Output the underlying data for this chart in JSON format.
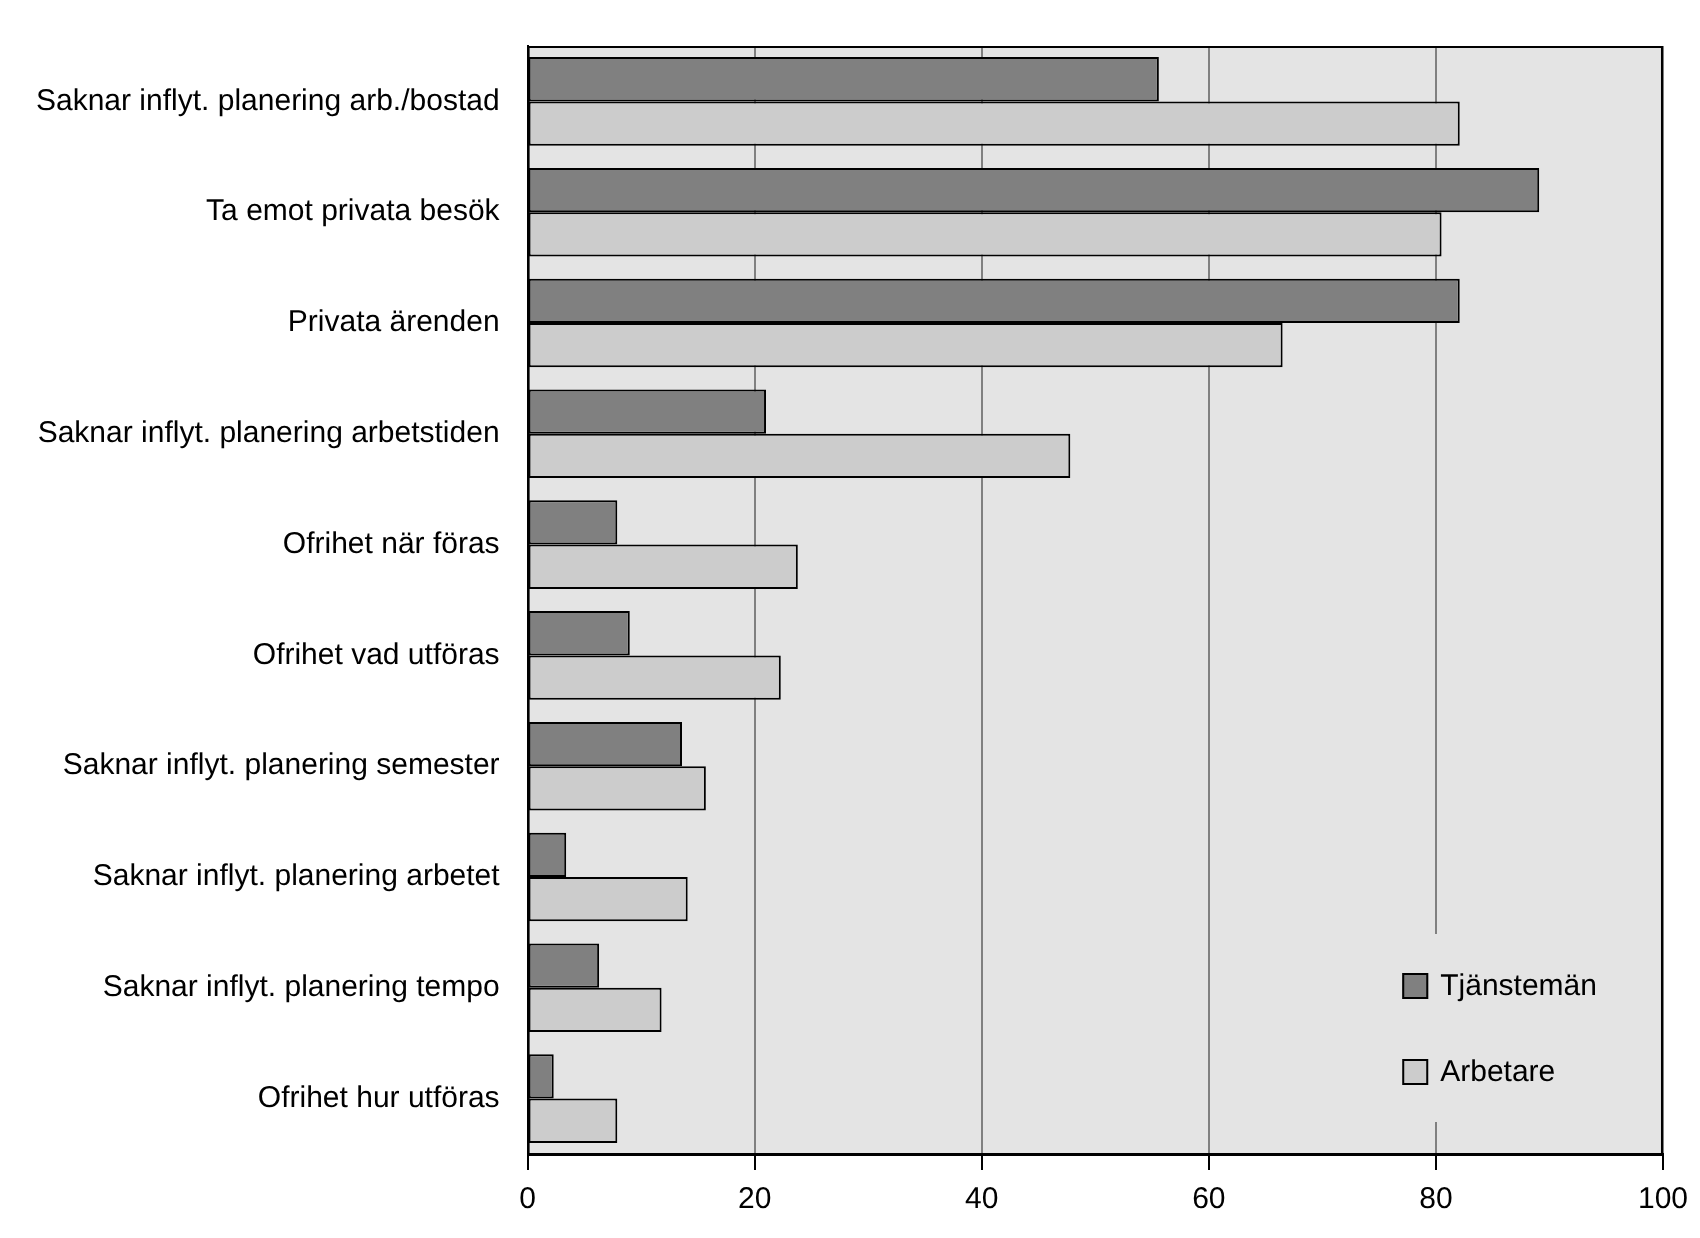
{
  "chart_data": {
    "type": "bar",
    "orientation": "horizontal",
    "categories": [
      "Saknar inflyt. planering arb./bostad",
      "Ta emot privata besök",
      "Privata ärenden",
      "Saknar inflyt. planering arbetstiden",
      "Ofrihet när föras",
      "Ofrihet vad utföras",
      "Saknar inflyt. planering semester",
      "Saknar inflyt. planering arbetet",
      "Saknar inflyt. planering tempo",
      "Ofrihet hur utföras"
    ],
    "series": [
      {
        "name": "Tjänstemän",
        "color": "#808080",
        "values": [
          55.6,
          89.1,
          82.1,
          21.0,
          7.9,
          9.0,
          13.6,
          3.4,
          6.3,
          2.3
        ]
      },
      {
        "name": "Arbetare",
        "color": "#cccccc",
        "values": [
          82.1,
          80.5,
          66.5,
          47.8,
          23.8,
          22.3,
          15.7,
          14.1,
          11.8,
          7.9
        ]
      }
    ],
    "xlim": [
      0,
      100
    ],
    "xticks": [
      0,
      20,
      40,
      60,
      80,
      100
    ],
    "grid": "x",
    "legend": "bottom right"
  }
}
